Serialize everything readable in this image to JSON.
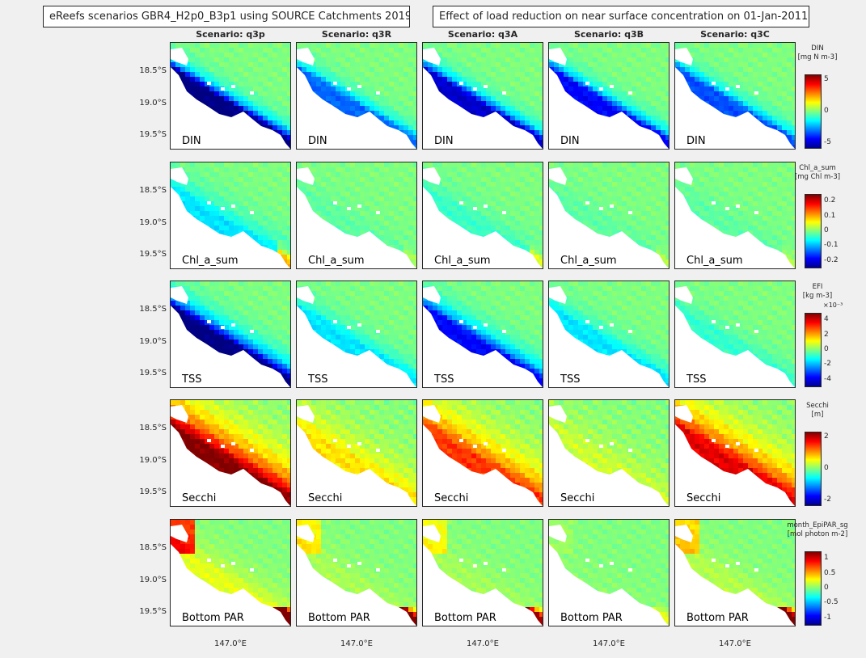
{
  "titles": {
    "left": "eReefs scenarios GBR4_H2p0_B3p1 using SOURCE Catchments 2019",
    "right": "Effect of load reduction on near surface concentration on 01-Jan-2011"
  },
  "scenarios": [
    "Scenario: q3p",
    "Scenario: q3R",
    "Scenario: q3A",
    "Scenario: q3B",
    "Scenario: q3C"
  ],
  "variables": [
    {
      "label": "DIN",
      "cb_title": "DIN",
      "cb_unit": "[mg N m-3]",
      "cb_exponent": "",
      "cb_ticks": [
        "5",
        "0",
        "-5"
      ]
    },
    {
      "label": "Chl_a_sum",
      "cb_title": "Chl_a_sum",
      "cb_unit": "[mg Chl m-3]",
      "cb_exponent": "",
      "cb_ticks": [
        "0.2",
        "0.1",
        "0",
        "-0.1",
        "-0.2"
      ]
    },
    {
      "label": "TSS",
      "cb_title": "EFI",
      "cb_unit": "[kg m-3]",
      "cb_exponent": "×10⁻³",
      "cb_ticks": [
        "4",
        "2",
        "0",
        "-2",
        "-4"
      ]
    },
    {
      "label": "Secchi",
      "cb_title": "Secchi",
      "cb_unit": "[m]",
      "cb_exponent": "",
      "cb_ticks": [
        "2",
        "0",
        "-2"
      ]
    },
    {
      "label": "Bottom PAR",
      "cb_title": "month_EpiPAR_sg",
      "cb_unit": "[mol photon m-2]",
      "cb_exponent": "",
      "cb_ticks": [
        "1",
        "0.5",
        "0",
        "-0.5",
        "-1"
      ]
    }
  ],
  "y_ticks": [
    "18.5°S",
    "19.0°S",
    "19.5°S"
  ],
  "x_tick": "147.0°E",
  "colors": {
    "colormap": "jet",
    "background": "#f0f0f0",
    "panel_bg": "#ffffff",
    "zero_color": "#80ff80"
  },
  "chart_data": {
    "type": "heatmap",
    "description": "5x5 grid of map panels; rows = variables, columns = scenarios; colour = change in near-surface value (anomaly)",
    "rows": [
      "DIN",
      "Chl_a_sum",
      "TSS",
      "Secchi",
      "Bottom PAR"
    ],
    "columns": [
      "q3p",
      "q3R",
      "q3A",
      "q3B",
      "q3C"
    ],
    "color_limits": [
      [
        -5,
        5
      ],
      [
        -0.25,
        0.25
      ],
      [
        -0.004,
        0.004
      ],
      [
        -3,
        3
      ],
      [
        -1,
        1
      ]
    ],
    "lat_ticks": [
      -18.5,
      -19.0,
      -19.5
    ],
    "lon_ticks": [
      147.0
    ],
    "lat_range": [
      -19.8,
      -18.2
    ],
    "lon_range": [
      146.15,
      147.85
    ],
    "anomaly_strength": [
      [
        1.0,
        0.55,
        0.85,
        0.75,
        0.6
      ],
      [
        0.55,
        0.12,
        0.25,
        0.12,
        0.12
      ],
      [
        1.0,
        0.3,
        0.75,
        0.3,
        0.15
      ],
      [
        1.0,
        0.3,
        0.65,
        0.15,
        0.8
      ],
      [
        1.0,
        0.4,
        0.35,
        0.08,
        0.5
      ]
    ]
  }
}
